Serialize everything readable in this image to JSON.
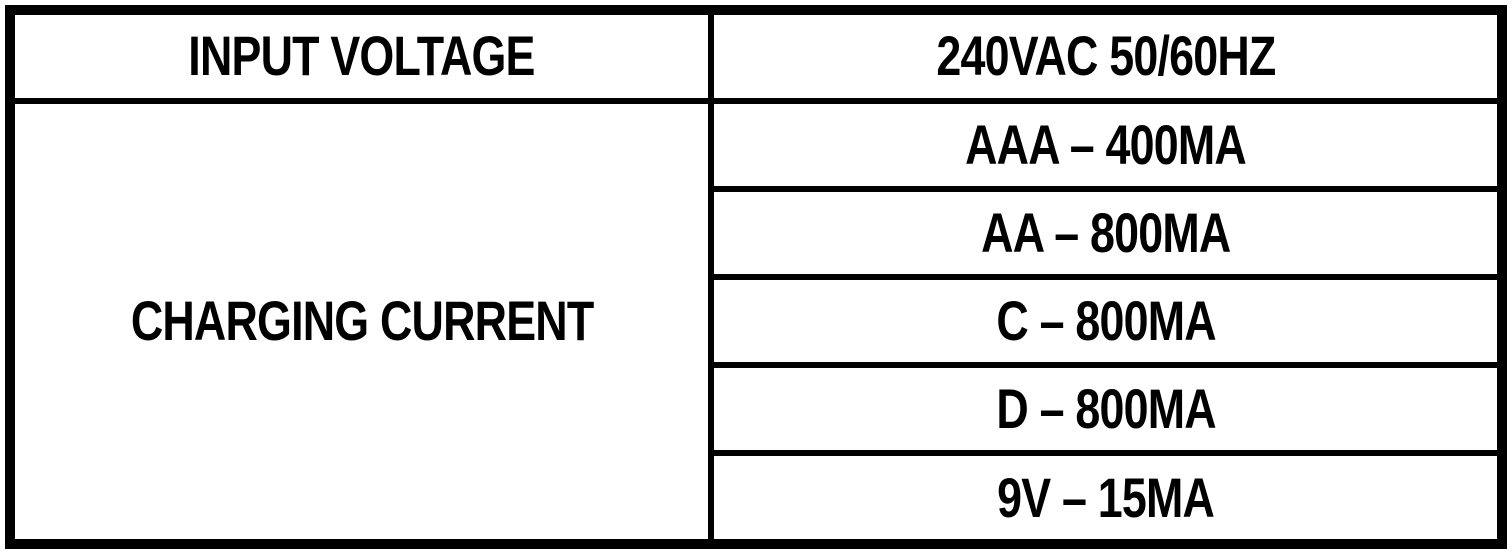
{
  "spec_table": {
    "input_voltage_label": "INPUT VOLTAGE",
    "input_voltage_value": "240VAC 50/60HZ",
    "charging_current_label": "CHARGING CURRENT",
    "charging_current_values": [
      "AAA – 400MA",
      "AA – 800MA",
      "C – 800MA",
      "D – 800MA",
      "9V – 15MA"
    ]
  },
  "colors": {
    "border": "#000000",
    "text": "#000000",
    "background": "#ffffff"
  }
}
